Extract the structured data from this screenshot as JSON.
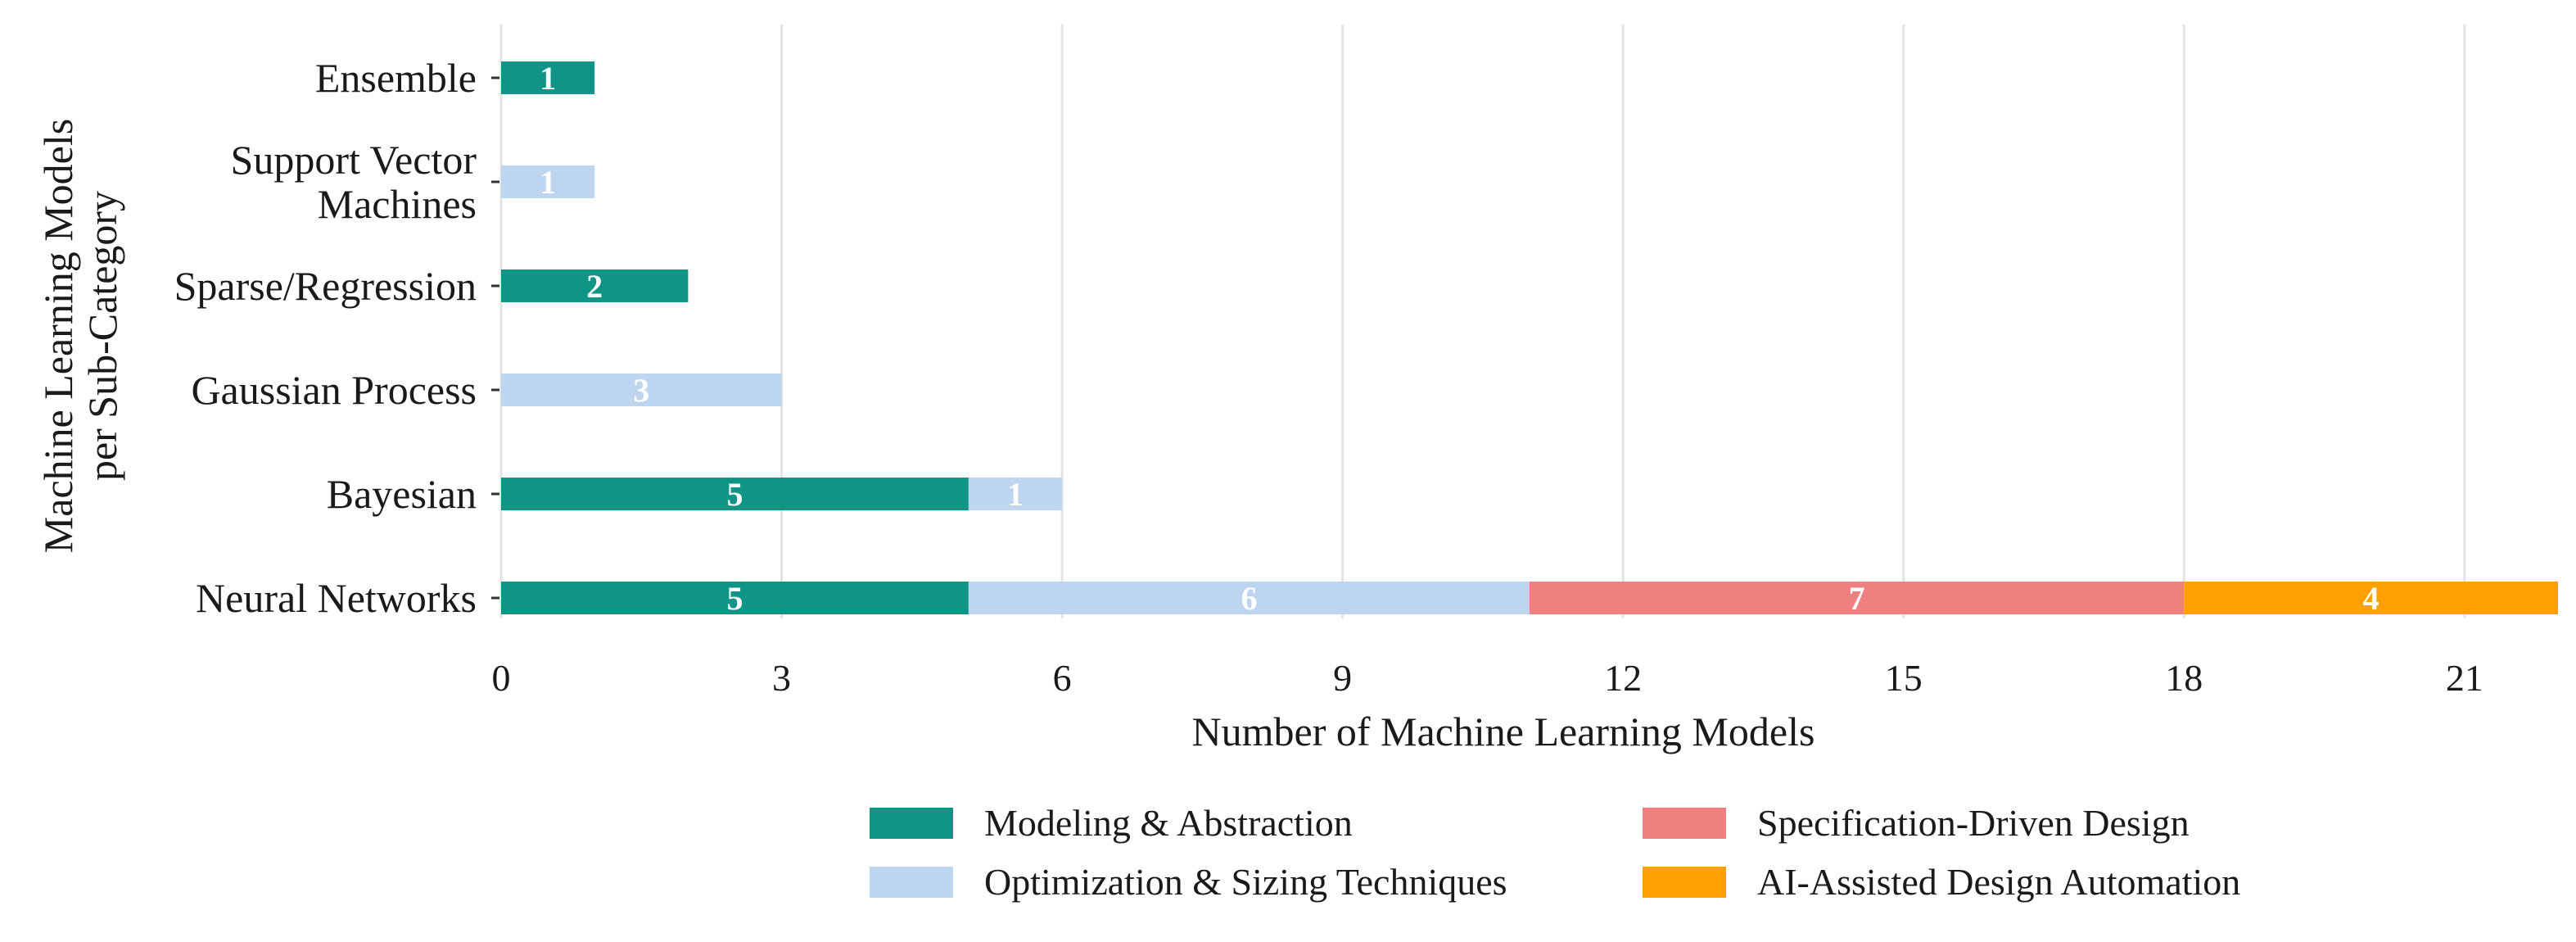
{
  "chart_data": {
    "type": "bar",
    "orientation": "horizontal",
    "stacked": true,
    "categories": [
      "Neural Networks",
      "Bayesian",
      "Gaussian Process",
      "Sparse/Regression",
      "Support Vector\nMachines",
      "Ensemble"
    ],
    "series": [
      {
        "name": "Modeling & Abstraction",
        "color": "#0f9488",
        "values": [
          5,
          5,
          0,
          2,
          0,
          1
        ]
      },
      {
        "name": "Optimization & Sizing Techniques",
        "color": "#bdd5ef",
        "values": [
          6,
          1,
          3,
          0,
          1,
          0
        ]
      },
      {
        "name": "Specification-Driven Design",
        "color": "#f08080",
        "values": [
          7,
          0,
          0,
          0,
          0,
          0
        ]
      },
      {
        "name": "AI-Assisted Design Automation",
        "color": "#ffa000",
        "values": [
          4,
          0,
          0,
          0,
          0,
          0
        ]
      }
    ],
    "xlabel": "Number of Machine Learning Models",
    "ylabel": "Machine Learning Models\nper Sub-Category",
    "xlim": [
      0,
      22
    ],
    "xticks": [
      0,
      3,
      6,
      9,
      12,
      15,
      18,
      21
    ],
    "grid": "vertical",
    "legend_position": "bottom",
    "data_labels": true
  }
}
